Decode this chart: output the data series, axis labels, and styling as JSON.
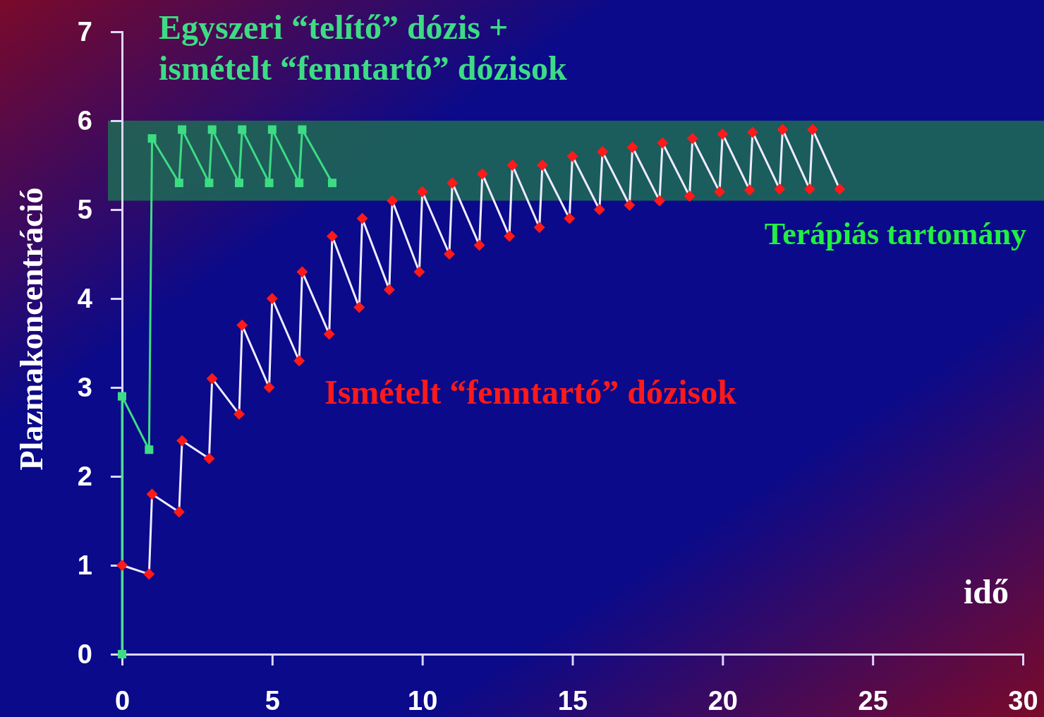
{
  "chart_data": {
    "type": "line",
    "xlabel": "idő",
    "ylabel": "Plazmakoncentráció",
    "xlim": [
      0,
      30
    ],
    "ylim": [
      0,
      7
    ],
    "xticks": [
      0,
      5,
      10,
      15,
      20,
      25,
      30
    ],
    "yticks": [
      0,
      1,
      2,
      3,
      4,
      5,
      6,
      7
    ],
    "grid": false,
    "series": [
      {
        "name": "Egyszeri “telítő” dózis + ismételt “fenntartó” dózisok",
        "color": "#3ddc84",
        "marker": "square",
        "x": [
          0,
          0,
          0.9,
          1,
          1.9,
          2,
          2.9,
          3,
          3.9,
          4,
          4.9,
          5,
          5.9,
          6,
          7
        ],
        "values": [
          0,
          2.9,
          2.3,
          5.8,
          5.3,
          5.9,
          5.3,
          5.9,
          5.3,
          5.9,
          5.3,
          5.9,
          5.3,
          5.9,
          5.3
        ]
      },
      {
        "name": "Ismételt “fenntartó” dózisok",
        "color": "#ff1a1a",
        "marker": "diamond",
        "x": [
          0,
          0.9,
          1,
          1.9,
          2,
          2.9,
          3,
          3.9,
          4,
          4.9,
          5,
          5.9,
          6,
          6.9,
          7,
          7.9,
          8,
          8.9,
          9,
          9.9,
          10,
          10.9,
          11,
          11.9,
          12,
          12.9,
          13,
          13.9,
          14,
          14.9,
          15,
          15.9,
          16,
          16.9,
          17,
          17.9,
          18,
          18.9,
          19,
          19.9,
          20,
          20.9,
          21,
          21.9,
          22,
          22.9,
          23,
          23.9
        ],
        "values": [
          1,
          0.9,
          1.8,
          1.6,
          2.4,
          2.2,
          3.1,
          2.7,
          3.7,
          3.0,
          4.0,
          3.3,
          4.3,
          3.6,
          4.7,
          3.9,
          4.9,
          4.1,
          5.1,
          4.3,
          5.2,
          4.5,
          5.3,
          4.6,
          5.4,
          4.7,
          5.5,
          4.8,
          5.5,
          4.9,
          5.6,
          5.0,
          5.65,
          5.05,
          5.7,
          5.1,
          5.75,
          5.15,
          5.8,
          5.2,
          5.85,
          5.22,
          5.87,
          5.23,
          5.9,
          5.23,
          5.9,
          5.23
        ]
      }
    ],
    "bands": [
      {
        "axis": "y",
        "from": 5.1,
        "to": 6,
        "label": "Terápiás tartomány",
        "color": "#1f6b55"
      }
    ]
  }
}
